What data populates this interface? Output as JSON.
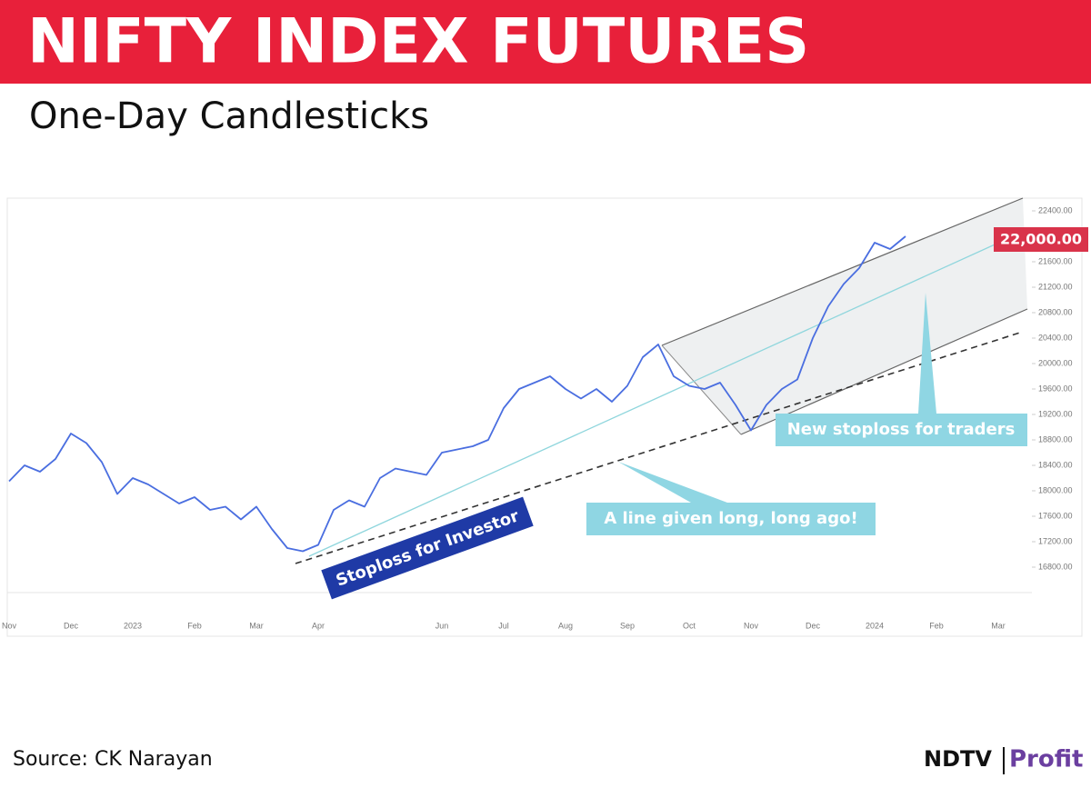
{
  "chart_data": {
    "type": "line",
    "title": "NIFTY INDEX FUTURES",
    "subtitle": "One-Day Candlesticks",
    "source": "Source: CK Narayan",
    "brand": [
      "NDTV",
      "Profit"
    ],
    "annotations": [
      "22,000.00",
      "New stoploss for traders",
      "A line given long, long ago!",
      "Stoploss for Investor"
    ],
    "categories": [
      "Nov",
      null,
      null,
      null,
      "Dec",
      null,
      null,
      null,
      "2023",
      null,
      null,
      null,
      "Feb",
      null,
      null,
      null,
      "Mar",
      null,
      null,
      null,
      "Apr",
      null,
      null,
      null,
      null,
      null,
      null,
      null,
      "Jun",
      null,
      null,
      null,
      "Jul",
      null,
      null,
      null,
      "Aug",
      null,
      null,
      null,
      "Sep",
      null,
      null,
      null,
      "Oct",
      null,
      null,
      null,
      "Nov",
      null,
      null,
      null,
      "Dec",
      null,
      null,
      null,
      "2024",
      null,
      null,
      null,
      "Feb",
      null,
      null,
      null,
      "Mar",
      null,
      null
    ],
    "series": [
      {
        "color": "#4a6ee0",
        "values": [
          18150,
          18400,
          18300,
          18500,
          18900,
          18750,
          18450,
          17950,
          18200,
          18100,
          17950,
          17800,
          17900,
          17700,
          17750,
          17550,
          17750,
          17400,
          17100,
          17050,
          17150,
          17700,
          17850,
          17750,
          18200,
          18350,
          18300,
          18250,
          18600,
          18650,
          18700,
          18800,
          19300,
          19600,
          19700,
          19800,
          19600,
          19450,
          19600,
          19400,
          19650,
          20100,
          20300,
          19800,
          19650,
          19600,
          19700,
          19350,
          18950,
          19350,
          19600,
          19750,
          20400,
          20900,
          21250,
          21500,
          21900,
          21800,
          22000,
          null,
          null,
          null,
          null,
          null,
          null,
          null,
          null
        ]
      }
    ],
    "ylim": [
      16400,
      22600
    ],
    "yticks": [
      {
        "value": 16800,
        "label": "16800.00"
      },
      {
        "value": 17200,
        "label": "17200.00"
      },
      {
        "value": 17600,
        "label": "17600.00"
      },
      {
        "value": 18000,
        "label": "18000.00"
      },
      {
        "value": 18400,
        "label": "18400.00"
      },
      {
        "value": 18800,
        "label": "18800.00"
      },
      {
        "value": 19200,
        "label": "19200.00"
      },
      {
        "value": 19600,
        "label": "19600.00"
      },
      {
        "value": 20000,
        "label": "20000.00"
      },
      {
        "value": 20400,
        "label": "20400.00"
      },
      {
        "value": 20800,
        "label": "20800.00"
      },
      {
        "value": 21200,
        "label": "21200.00"
      },
      {
        "value": 21600,
        "label": "21600.00"
      },
      {
        "value": 22000,
        "label": "22000.00"
      },
      {
        "value": 22400,
        "label": "22400.00"
      }
    ]
  }
}
